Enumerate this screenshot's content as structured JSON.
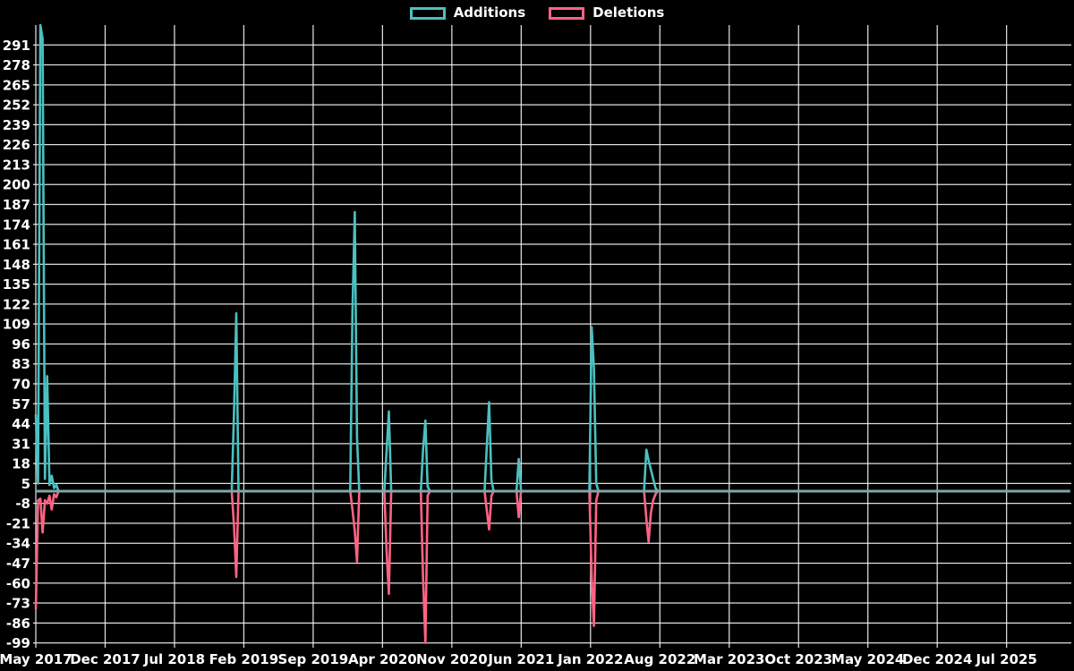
{
  "page": {
    "background": "#000000"
  },
  "legend": {
    "items": [
      {
        "id": "additions",
        "label": "Additions",
        "color": "#4bc0c0"
      },
      {
        "id": "deletions",
        "label": "Deletions",
        "color": "#ff6384"
      }
    ]
  },
  "chart_data": {
    "type": "line",
    "title": "",
    "xlabel": "",
    "ylabel": "",
    "legend_position": "top",
    "grid": true,
    "background_color": "#000000",
    "grid_color": "#f2f2f2",
    "text_color": "#ffffff",
    "zero_line_color": "#7fa6a9",
    "x_start": "May 2017",
    "x_end": "Jul 2025",
    "x_tick_interval_months": 7,
    "x_tick_labels": [
      "May 2017",
      "Dec 2017",
      "Jul 2018",
      "Feb 2019",
      "Sep 2019",
      "Apr 2020",
      "Nov 2020",
      "Jun 2021",
      "Jan 2022",
      "Aug 2022",
      "Mar 2023",
      "Oct 2023",
      "May 2024",
      "Dec 2024",
      "Jul 2025"
    ],
    "y_min": -99,
    "y_max": 304,
    "y_tick_step": 13,
    "y_tick_labels": [
      291,
      278,
      265,
      252,
      239,
      226,
      213,
      200,
      187,
      174,
      161,
      148,
      135,
      122,
      109,
      96,
      83,
      70,
      57,
      44,
      31,
      18,
      5,
      -8,
      -21,
      -34,
      -47,
      -60,
      -73,
      -86,
      -99
    ],
    "sampling": "weekly",
    "weeks_total": 454,
    "baseline_value": 0,
    "series": [
      {
        "name": "Additions",
        "color": "#4bc0c0",
        "default": 0,
        "points_by_week": {
          "0": 50,
          "1": 5,
          "2": 304,
          "3": 295,
          "4": 8,
          "5": 75,
          "6": 4,
          "7": 10,
          "8": 2,
          "9": 4,
          "87": 52,
          "88": 116,
          "139": 117,
          "140": 182,
          "141": 35,
          "154": 27,
          "155": 52,
          "170": 27,
          "171": 46,
          "172": 3,
          "198": 30,
          "199": 58,
          "200": 7,
          "212": 21,
          "244": 107,
          "245": 80,
          "246": 5,
          "268": 27,
          "269": 20,
          "270": 14,
          "271": 8,
          "272": 2
        }
      },
      {
        "name": "Deletions",
        "color": "#ff6384",
        "default": 0,
        "points_by_week": {
          "0": -77,
          "1": -6,
          "2": -5,
          "3": -27,
          "4": -6,
          "5": -8,
          "6": -3,
          "7": -12,
          "8": -2,
          "9": -4,
          "87": -23,
          "88": -56,
          "139": -12,
          "140": -26,
          "141": -46,
          "154": -40,
          "155": -67,
          "170": -57,
          "171": -99,
          "172": -3,
          "198": -13,
          "199": -25,
          "200": -3,
          "212": -17,
          "244": -56,
          "245": -88,
          "246": -6,
          "268": -18,
          "269": -33,
          "270": -14,
          "271": -6,
          "272": -2
        }
      }
    ]
  }
}
